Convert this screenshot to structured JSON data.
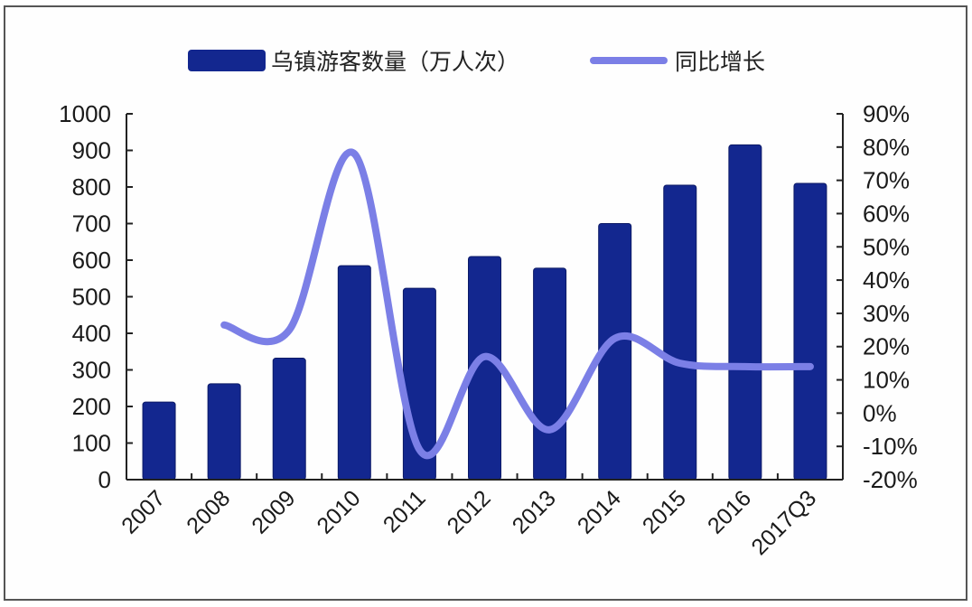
{
  "colors": {
    "bar": "#13278f",
    "bar_edge": "#0c1a66",
    "line": "#7b7fe6",
    "axis": "#222222",
    "text": "#1a1a1a"
  },
  "legend": {
    "bar_label": "乌镇游客数量（万人次）",
    "line_label": "同比增长"
  },
  "chart_data": {
    "type": "bar",
    "title": "",
    "xlabel": "",
    "ylabel": "乌镇游客数量（万人次）",
    "y2label": "同比增长",
    "categories": [
      "2007",
      "2008",
      "2009",
      "2010",
      "2011",
      "2012",
      "2013",
      "2014",
      "2015",
      "2016",
      "2017Q3"
    ],
    "series": [
      {
        "name": "乌镇游客数量（万人次）",
        "type": "bar",
        "axis": "left",
        "values": [
          212,
          262,
          332,
          585,
          523,
          610,
          578,
          700,
          805,
          915,
          810
        ]
      },
      {
        "name": "同比增长",
        "type": "line",
        "axis": "right",
        "smooth": true,
        "values": [
          null,
          26.5,
          25.0,
          78.0,
          -11.0,
          17.0,
          -5.0,
          22.5,
          15.0,
          14.0,
          14.0
        ]
      }
    ],
    "ylim": [
      0,
      1000
    ],
    "y_ticks": [
      0,
      100,
      200,
      300,
      400,
      500,
      600,
      700,
      800,
      900,
      1000
    ],
    "y2lim": [
      -20,
      90
    ],
    "y2_ticks": [
      "-20%",
      "-10%",
      "0%",
      "10%",
      "20%",
      "30%",
      "40%",
      "50%",
      "60%",
      "70%",
      "80%",
      "90%"
    ],
    "grid": false,
    "legend_position": "top"
  }
}
